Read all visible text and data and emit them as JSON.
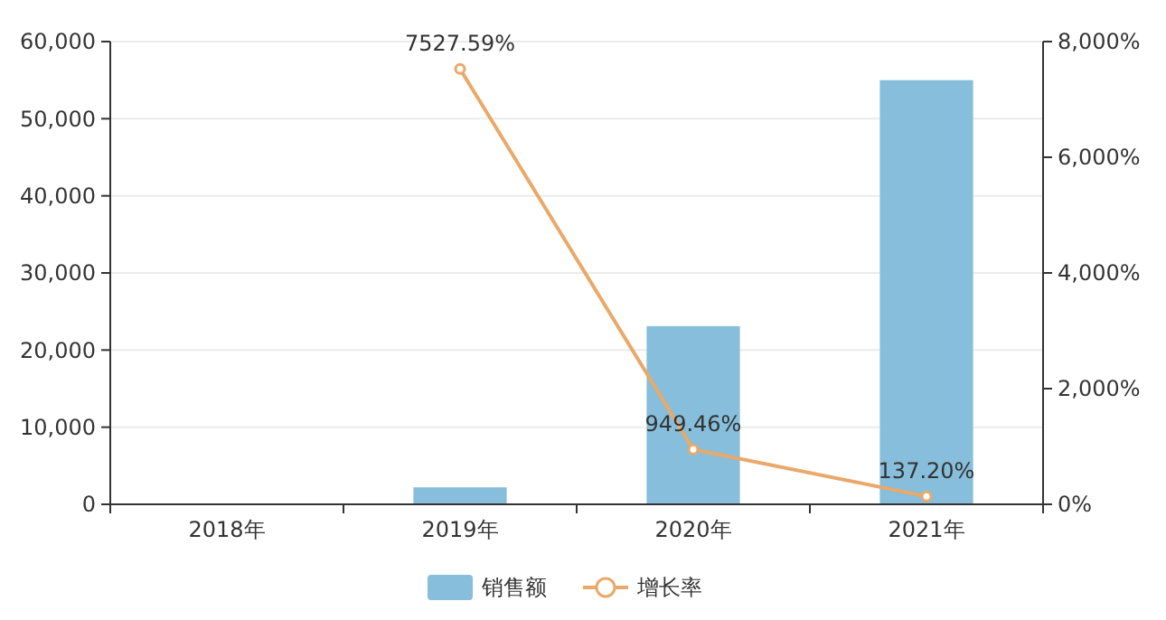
{
  "chart_data": {
    "type": "bar",
    "categories": [
      "2018年",
      "2019年",
      "2020年",
      "2021年"
    ],
    "series": [
      {
        "name": "销售额",
        "color": "#86bedb",
        "values": [
          null,
          2200,
          23100,
          55000
        ]
      },
      {
        "name": "增长率",
        "type": "line",
        "axis": "y2",
        "color": "#e8a96a",
        "marker": "circle",
        "values": [
          null,
          7527.59,
          949.46,
          137.2
        ],
        "value_labels": [
          null,
          "7527.59%",
          "949.46%",
          "137.20%"
        ]
      }
    ],
    "ylim": [
      0,
      60000
    ],
    "yticks": [
      {
        "value": 0,
        "label": "0"
      },
      {
        "value": 10000,
        "label": "10,000"
      },
      {
        "value": 20000,
        "label": "20,000"
      },
      {
        "value": 30000,
        "label": "30,000"
      },
      {
        "value": 40000,
        "label": "40,000"
      },
      {
        "value": 50000,
        "label": "50,000"
      },
      {
        "value": 60000,
        "label": "60,000"
      }
    ],
    "y2lim": [
      0,
      8000
    ],
    "y2ticks": [
      {
        "value": 0,
        "label": "0%"
      },
      {
        "value": 2000,
        "label": "2,000%"
      },
      {
        "value": 4000,
        "label": "4,000%"
      },
      {
        "value": 6000,
        "label": "6,000%"
      },
      {
        "value": 8000,
        "label": "8,000%"
      }
    ],
    "grid": "y",
    "legend": "bottom"
  }
}
